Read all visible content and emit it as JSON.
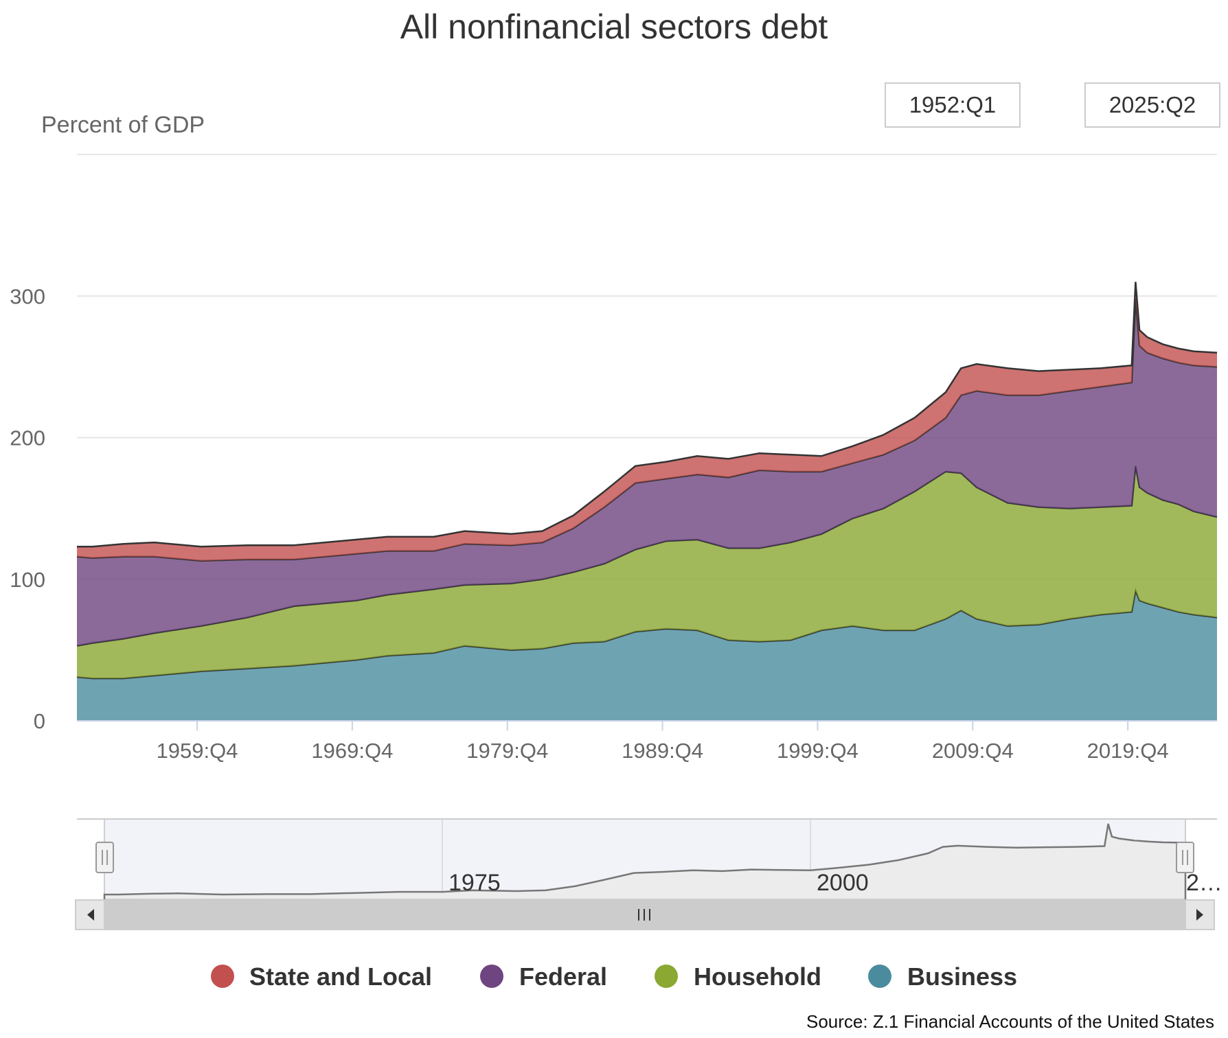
{
  "chart_data": {
    "type": "area",
    "stacked": true,
    "title": "All nonfinancial sectors debt",
    "ylabel": "Percent of GDP",
    "ylim": [
      0,
      400
    ],
    "yticks": [
      0,
      100,
      200,
      300
    ],
    "xrange": [
      "1952:Q1",
      "2025:Q2"
    ],
    "xtick_labels": [
      "1959:Q4",
      "1969:Q4",
      "1979:Q4",
      "1989:Q4",
      "1999:Q4",
      "2009:Q4",
      "2019:Q4"
    ],
    "grid": true,
    "legend_position": "bottom",
    "x": [
      1952,
      1953,
      1955,
      1957,
      1960,
      1963,
      1966,
      1970,
      1972,
      1975,
      1977,
      1980,
      1982,
      1984,
      1986,
      1988,
      1990,
      1992,
      1994,
      1996,
      1998,
      2000,
      2002,
      2004,
      2006,
      2008,
      2009,
      2010,
      2012,
      2014,
      2016,
      2018,
      2020.0,
      2020.25,
      2020.5,
      2021,
      2022,
      2023,
      2024,
      2025.5
    ],
    "series": [
      {
        "name": "Business",
        "color": "#4a8c9e",
        "values": [
          31,
          30,
          30,
          32,
          35,
          37,
          39,
          43,
          46,
          48,
          53,
          50,
          51,
          55,
          56,
          63,
          65,
          64,
          57,
          56,
          57,
          64,
          67,
          64,
          64,
          72,
          78,
          72,
          67,
          68,
          72,
          75,
          77,
          92,
          85,
          83,
          80,
          77,
          75,
          73
        ]
      },
      {
        "name": "Household",
        "color": "#8aa832",
        "values": [
          22,
          25,
          28,
          30,
          32,
          36,
          42,
          42,
          43,
          45,
          43,
          47,
          49,
          50,
          55,
          58,
          62,
          64,
          65,
          66,
          69,
          68,
          76,
          86,
          98,
          104,
          97,
          93,
          87,
          83,
          78,
          76,
          75,
          88,
          80,
          78,
          76,
          76,
          73,
          71
        ]
      },
      {
        "name": "Federal",
        "color": "#6e4580",
        "values": [
          63,
          60,
          58,
          54,
          46,
          41,
          33,
          33,
          31,
          27,
          29,
          27,
          26,
          31,
          40,
          47,
          44,
          46,
          50,
          55,
          50,
          44,
          39,
          38,
          36,
          38,
          55,
          68,
          76,
          79,
          83,
          85,
          87,
          118,
          100,
          99,
          100,
          100,
          103,
          106
        ]
      },
      {
        "name": "State and Local",
        "color": "#c2504f",
        "values": [
          7,
          8,
          9,
          10,
          10,
          10,
          10,
          10,
          10,
          10,
          9,
          8,
          8,
          9,
          11,
          12,
          12,
          13,
          13,
          12,
          12,
          11,
          12,
          14,
          16,
          18,
          19,
          19,
          19,
          17,
          15,
          13,
          12,
          12,
          11,
          11,
          10,
          10,
          10,
          10
        ]
      }
    ],
    "navigator": {
      "labels": [
        "1975",
        "2000",
        "2…"
      ]
    }
  },
  "range_selector": {
    "from": "1952:Q1",
    "to": "2025:Q2"
  },
  "legend": [
    {
      "label": "State and Local",
      "color": "#c2504f"
    },
    {
      "label": "Federal",
      "color": "#6e4580"
    },
    {
      "label": "Household",
      "color": "#8aa832"
    },
    {
      "label": "Business",
      "color": "#4a8c9e"
    }
  ],
  "source": "Source: Z.1 Financial Accounts of the United States"
}
